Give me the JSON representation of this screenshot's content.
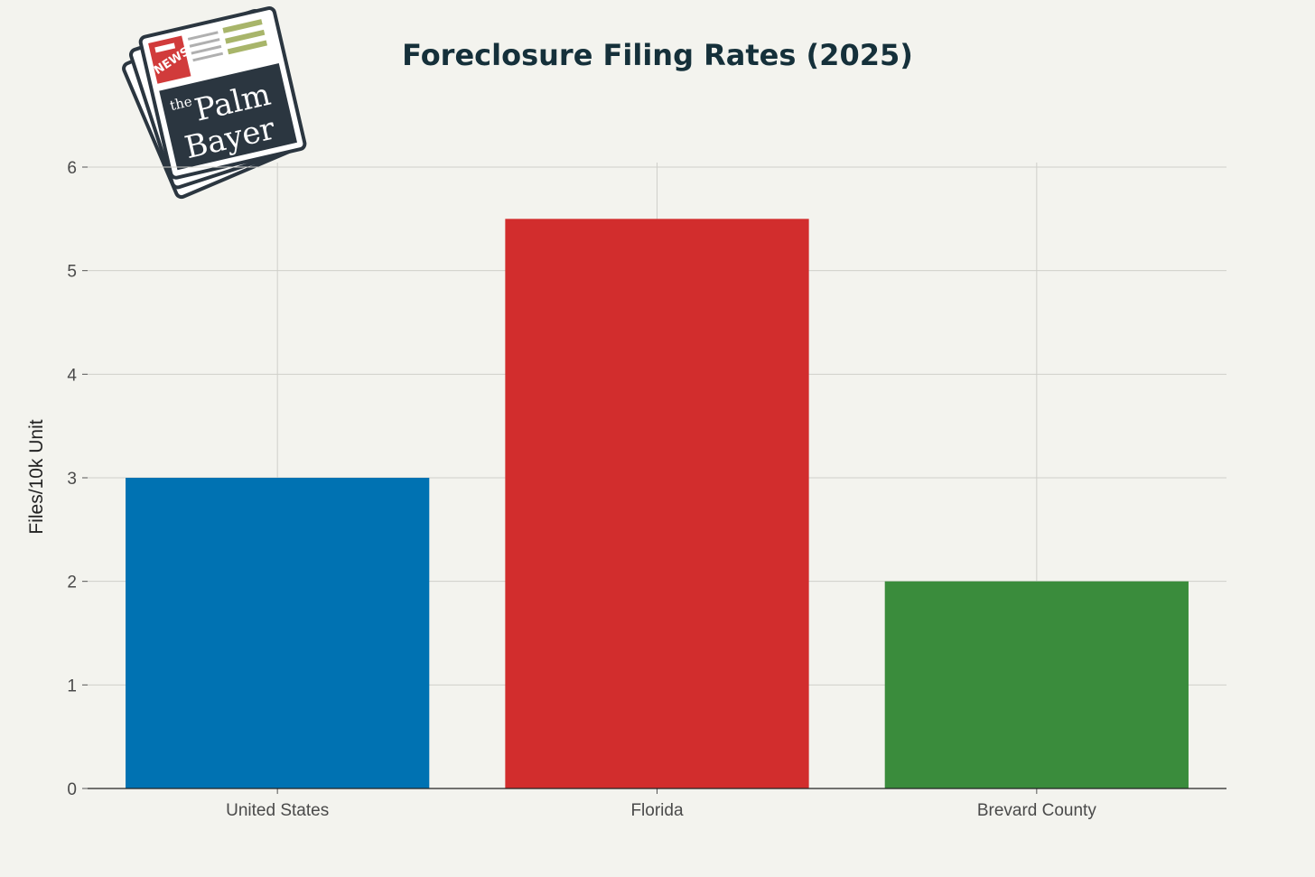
{
  "logo": {
    "badge": "NEWS",
    "small_word": "the",
    "word1": "Palm",
    "word2": "Bayer"
  },
  "chart_data": {
    "type": "bar",
    "title": "Foreclosure Filing Rates (2025)",
    "xlabel": "",
    "ylabel": "Files/10k Unit",
    "categories": [
      "United States",
      "Florida",
      "Brevard County"
    ],
    "values": [
      3,
      5.5,
      2
    ],
    "colors": [
      "#0072b2",
      "#d22d2d",
      "#3a8c3c"
    ],
    "ylim": [
      0,
      6
    ],
    "yticks": [
      0,
      1,
      2,
      3,
      4,
      5,
      6
    ],
    "grid": true,
    "legend": "none"
  }
}
